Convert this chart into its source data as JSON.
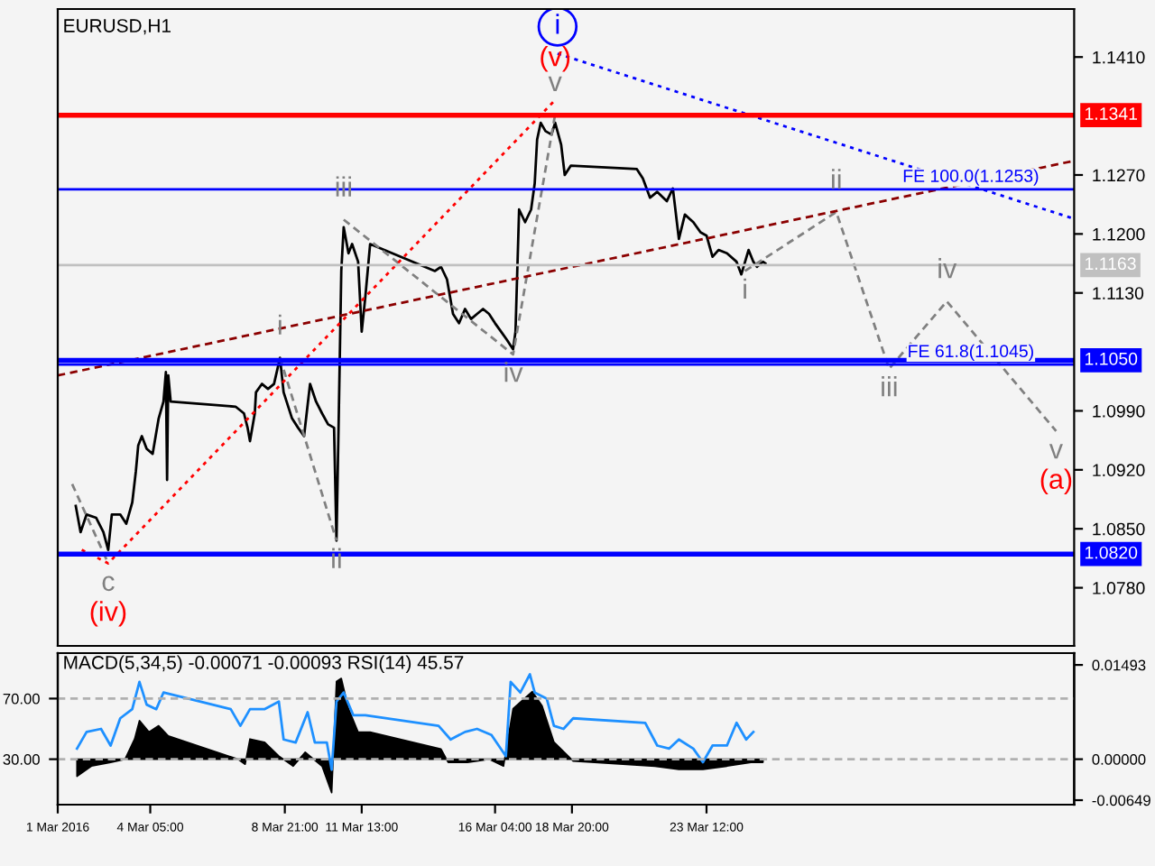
{
  "chart_data": [
    {
      "type": "line",
      "title": "EURUSD,H1",
      "xlim": [
        "2016-03-01T00:00",
        "2016-04-05T06:00"
      ],
      "ylim": [
        1.0711,
        1.1467
      ],
      "tick_labels": "y",
      "grid": false,
      "yticks": [
        {
          "value": 1.078,
          "label": "1.0780"
        },
        {
          "value": 1.085,
          "label": "1.0850"
        },
        {
          "value": 1.092,
          "label": "1.0920"
        },
        {
          "value": 1.099,
          "label": "1.0990"
        },
        {
          "value": 1.113,
          "label": "1.1130"
        },
        {
          "value": 1.12,
          "label": "1.1200"
        },
        {
          "value": 1.127,
          "label": "1.1270"
        },
        {
          "value": 1.141,
          "label": "1.1410"
        }
      ],
      "series": [
        {
          "color": "#000000",
          "line_style": "solid",
          "x": [
            "2016-03-01T15:00",
            "2016-03-01T19:00",
            "2016-03-02T00:00",
            "2016-03-02T08:00",
            "2016-03-02T14:00",
            "2016-03-02T18:00",
            "2016-03-02T21:00",
            "2016-03-03T04:00",
            "2016-03-03T09:00",
            "2016-03-03T14:00",
            "2016-03-03T17:00",
            "2016-03-03T19:00",
            "2016-03-03T22:00",
            "2016-03-04T02:00",
            "2016-03-04T07:00",
            "2016-03-04T12:00",
            "2016-03-04T16:00",
            "2016-03-04T18:00",
            "2016-03-04T19:00",
            "2016-03-04T20:00",
            "2016-03-04T22:00",
            "2016-03-07T04:00",
            "2016-03-07T11:00",
            "2016-03-07T14:00",
            "2016-03-07T16:00",
            "2016-03-07T20:00",
            "2016-03-07T21:00",
            "2016-03-08T02:00",
            "2016-03-08T07:00",
            "2016-03-08T12:00",
            "2016-03-08T17:00",
            "2016-03-08T20:00",
            "2016-03-09T03:00",
            "2016-03-09T08:00",
            "2016-03-09T13:00",
            "2016-03-09T18:00",
            "2016-03-09T23:00",
            "2016-03-10T04:00",
            "2016-03-10T09:00",
            "2016-03-10T14:00",
            "2016-03-10T16:00",
            "2016-03-10T18:00",
            "2016-03-10T20:00",
            "2016-03-10T22:00",
            "2016-03-11T02:00",
            "2016-03-11T05:00",
            "2016-03-11T10:00",
            "2016-03-11T13:00",
            "2016-03-11T16:00",
            "2016-03-11T20:00",
            "2016-03-14T02:00",
            "2016-03-14T07:00",
            "2016-03-14T12:00",
            "2016-03-14T17:00",
            "2016-03-14T22:00",
            "2016-03-15T03:00",
            "2016-03-15T08:00",
            "2016-03-15T13:00",
            "2016-03-15T18:00",
            "2016-03-15T23:00",
            "2016-03-16T04:00",
            "2016-03-16T09:00",
            "2016-03-16T14:00",
            "2016-03-16T19:00",
            "2016-03-16T21:00",
            "2016-03-17T00:00",
            "2016-03-17T05:00",
            "2016-03-17T10:00",
            "2016-03-17T13:00",
            "2016-03-17T15:00",
            "2016-03-17T18:00",
            "2016-03-17T22:00",
            "2016-03-18T03:00",
            "2016-03-18T06:00",
            "2016-03-18T11:00",
            "2016-03-18T14:00",
            "2016-03-18T19:00",
            "2016-03-21T02:00",
            "2016-03-21T07:00",
            "2016-03-21T13:00",
            "2016-03-21T19:00",
            "2016-03-22T03:00",
            "2016-03-22T08:00",
            "2016-03-22T13:00",
            "2016-03-22T18:00",
            "2016-03-23T01:00",
            "2016-03-23T07:00",
            "2016-03-23T12:00",
            "2016-03-23T17:00",
            "2016-03-23T22:00",
            "2016-03-24T05:00",
            "2016-03-24T13:00",
            "2016-03-24T17:00",
            "2016-03-24T23:00",
            "2016-03-25T03:00",
            "2016-03-25T06:00",
            "2016-03-25T11:00",
            "2016-03-25T13:00"
          ],
          "values": [
            1.0877,
            1.0846,
            1.0867,
            1.0863,
            1.0846,
            1.0825,
            1.0867,
            1.0867,
            1.0856,
            1.0881,
            1.0918,
            1.0949,
            1.096,
            1.0945,
            1.0939,
            1.0981,
            1.1001,
            1.1036,
            1.0908,
            1.1032,
            1.1001,
            1.0995,
            1.0987,
            1.097,
            1.0954,
            1.0987,
            1.1012,
            1.1022,
            1.1016,
            1.1022,
            1.1053,
            1.1012,
            1.0981,
            1.097,
            1.096,
            1.1022,
            1.1001,
            1.0987,
            1.0974,
            1.097,
            1.0836,
            1.0991,
            1.1156,
            1.1208,
            1.1177,
            1.1188,
            1.1167,
            1.1084,
            1.1125,
            1.1188,
            1.1156,
            1.1161,
            1.1146,
            1.1105,
            1.1094,
            1.1111,
            1.1099,
            1.1105,
            1.1111,
            1.1105,
            1.1094,
            1.1084,
            1.1074,
            1.1063,
            1.1084,
            1.1229,
            1.1214,
            1.1229,
            1.126,
            1.1312,
            1.1332,
            1.1322,
            1.1318,
            1.1332,
            1.1306,
            1.127,
            1.1281,
            1.1277,
            1.1266,
            1.1243,
            1.125,
            1.1239,
            1.1254,
            1.1194,
            1.1223,
            1.1214,
            1.1202,
            1.1198,
            1.1173,
            1.1181,
            1.1177,
            1.1167,
            1.1152,
            1.1181,
            1.1167,
            1.1161,
            1.1167,
            1.1165
          ]
        },
        {
          "color": "#808080",
          "line_style": "dashed",
          "x": [
            "2016-03-01T12:00",
            "2016-03-02T18:00"
          ],
          "values": [
            1.0903,
            1.0809
          ],
          "value_labels": [
            null,
            "c"
          ]
        },
        {
          "color": "#808080",
          "line_style": "dashed",
          "x": [
            "2016-03-08T17:00",
            "2016-03-10T16:00"
          ],
          "values": [
            1.1053,
            1.0836
          ],
          "value_labels": [
            "i",
            "ii"
          ]
        },
        {
          "color": "#808080",
          "line_style": "dashed",
          "x": [
            "2016-03-10T22:00",
            "2016-03-16T19:00",
            "2016-03-18T06:00"
          ],
          "values": [
            1.1217,
            1.1057,
            1.1342
          ],
          "value_labels": [
            "iii",
            "iv",
            "v"
          ]
        },
        {
          "color": "#808080",
          "line_style": "dashed",
          "x": [
            "2016-03-24T20:00",
            "2016-03-28T00:00",
            "2016-03-29T20:00",
            "2016-03-31T20:00",
            "2016-04-04T15:00"
          ],
          "values": [
            1.1156,
            1.1226,
            1.104,
            1.112,
            1.0966
          ],
          "value_labels": [
            "i",
            "ii",
            "iii",
            "iv",
            "v"
          ]
        },
        {
          "color": "#ff0000",
          "line_style": "dotted",
          "x": [
            "2016-03-01T20:00",
            "2016-03-02T18:00",
            "2016-03-18T06:00"
          ],
          "values": [
            1.0825,
            1.0809,
            1.1359
          ]
        },
        {
          "color": "#0000ff",
          "line_style": "dotted",
          "x": [
            "2016-03-18T08:00",
            "2016-04-05T06:00"
          ],
          "values": [
            1.1414,
            1.1218
          ]
        },
        {
          "color": "#8b0000",
          "line_style": "dashed",
          "x": [
            "2016-03-01T00:00",
            "2016-04-05T03:00"
          ],
          "values": [
            1.1032,
            1.1286
          ]
        },
        {
          "type": "scatter",
          "marker": "circle",
          "color": "#0000ff",
          "x": [
            "2016-03-18T08:00"
          ],
          "values": [
            1.1446
          ],
          "value_labels": [
            "i"
          ]
        }
      ],
      "ref_lines": [
        {
          "axis": "y",
          "value": 1.1341,
          "label": "1.1341",
          "color": "#ff0000"
        },
        {
          "axis": "y",
          "value": 1.1253,
          "color": "#0000ff"
        },
        {
          "axis": "y",
          "value": 1.1163,
          "label": "1.1163",
          "color": "#c0c0c0"
        },
        {
          "axis": "y",
          "value": 1.105,
          "label": "1.1050",
          "color": "#0000ff"
        },
        {
          "axis": "y",
          "value": 1.1045,
          "color": "#0000ff"
        },
        {
          "axis": "y",
          "value": 1.082,
          "label": "1.0820",
          "color": "#0000ff"
        }
      ],
      "annotations": [
        {
          "text": "FE 100.0(1.1253)",
          "x": "2016-04-01T16:00",
          "y": 1.1253
        },
        {
          "text": "FE 61.8(1.1045)",
          "x": "2016-04-01T16:00",
          "y": 1.1045
        },
        {
          "text": "(v)",
          "x": "2016-03-18T06:00",
          "y": 1.1342
        },
        {
          "text": "(iv)",
          "x": "2016-03-02T18:00",
          "y": 1.0809
        },
        {
          "text": "(a)",
          "x": "2016-04-04T15:00",
          "y": 1.0966
        }
      ]
    },
    {
      "type": "area",
      "title": "MACD(5,34,5) -0.00071 -0.00093 RSI(14) 45.57",
      "xlim": [
        "2016-03-01T00:00",
        "2016-04-05T06:00"
      ],
      "ylim": [
        0,
        100
      ],
      "y2lim": [
        -0.0072,
        0.0168
      ],
      "grid": false,
      "xticks": [
        {
          "value": "2016-03-01T00:00",
          "label": "1 Mar 2016"
        },
        {
          "value": "2016-03-04T05:00",
          "label": "4 Mar 05:00"
        },
        {
          "value": "2016-03-08T21:00",
          "label": "8 Mar 21:00"
        },
        {
          "value": "2016-03-11T13:00",
          "label": "11 Mar 13:00"
        },
        {
          "value": "2016-03-16T04:00",
          "label": "16 Mar 04:00"
        },
        {
          "value": "2016-03-18T20:00",
          "label": "18 Mar 20:00"
        },
        {
          "value": "2016-03-23T12:00",
          "label": "23 Mar 12:00"
        }
      ],
      "y2ticks": [
        {
          "value": -0.00649,
          "label": "-0.00649"
        },
        {
          "value": 0,
          "label": "0.00000"
        },
        {
          "value": 0.01493,
          "label": "0.01493"
        }
      ],
      "yticks": [
        {
          "value": 30,
          "label": "30.00"
        },
        {
          "value": 70,
          "label": "70.00"
        }
      ],
      "series": [
        {
          "color": "#000000",
          "axis": "y2",
          "x": [
            "2016-03-01T16:00",
            "2016-03-02T04:00",
            "2016-03-02T20:00",
            "2016-03-03T08:00",
            "2016-03-03T16:00",
            "2016-03-03T20:00",
            "2016-03-04T04:00",
            "2016-03-04T12:00",
            "2016-03-04T20:00",
            "2016-03-07T06:00",
            "2016-03-07T12:00",
            "2016-03-07T16:00",
            "2016-03-08T04:00",
            "2016-03-08T16:00",
            "2016-03-09T04:00",
            "2016-03-09T14:00",
            "2016-03-10T04:00",
            "2016-03-10T12:00",
            "2016-03-10T16:00",
            "2016-03-10T20:00",
            "2016-03-11T02:00",
            "2016-03-11T10:00",
            "2016-03-11T20:00",
            "2016-03-14T07:00",
            "2016-03-14T13:00",
            "2016-03-15T05:00",
            "2016-03-15T23:00",
            "2016-03-16T11:00",
            "2016-03-16T19:00",
            "2016-03-17T11:00",
            "2016-03-17T19:00",
            "2016-03-18T05:00",
            "2016-03-18T21:00",
            "2016-03-21T17:00",
            "2016-03-22T13:00",
            "2016-03-23T09:00",
            "2016-03-24T05:00",
            "2016-03-25T01:00",
            "2016-03-25T11:00"
          ],
          "values": [
            -0.0027,
            -0.0011,
            -0.0005,
            0,
            0.0032,
            0.0061,
            0.0043,
            0.0053,
            0.0037,
            0,
            -0.0008,
            0.0032,
            0.0027,
            0.0005,
            -0.0011,
            0.0011,
            -0.0011,
            -0.0053,
            0.0123,
            0.0128,
            0.008,
            0.0043,
            0.0043,
            0.0016,
            -0.0005,
            -0.0005,
            0,
            -0.0011,
            0.008,
            0.0107,
            0.0085,
            0.0027,
            -0.0003,
            -0.0011,
            -0.0016,
            -0.0016,
            -0.0011,
            -0.0005,
            -0.0005
          ]
        },
        {
          "type": "line",
          "color": "#1e90ff",
          "axis": "y",
          "line_style": "solid",
          "x": [
            "2016-03-01T16:00",
            "2016-03-02T00:00",
            "2016-03-02T12:00",
            "2016-03-02T20:00",
            "2016-03-03T04:00",
            "2016-03-03T14:00",
            "2016-03-03T20:00",
            "2016-03-04T02:00",
            "2016-03-04T10:00",
            "2016-03-04T16:00",
            "2016-03-07T00:00",
            "2016-03-07T08:00",
            "2016-03-07T16:00",
            "2016-03-08T04:00",
            "2016-03-08T16:00",
            "2016-03-08T20:00",
            "2016-03-09T06:00",
            "2016-03-09T16:00",
            "2016-03-09T22:00",
            "2016-03-10T08:00",
            "2016-03-10T12:00",
            "2016-03-10T16:00",
            "2016-03-10T22:00",
            "2016-03-11T06:00",
            "2016-03-11T16:00",
            "2016-03-14T05:00",
            "2016-03-14T15:00",
            "2016-03-15T03:00",
            "2016-03-15T13:00",
            "2016-03-16T01:00",
            "2016-03-16T13:00",
            "2016-03-16T17:00",
            "2016-03-17T01:00",
            "2016-03-17T09:00",
            "2016-03-17T13:00",
            "2016-03-17T23:00",
            "2016-03-18T05:00",
            "2016-03-18T13:00",
            "2016-03-18T21:00",
            "2016-03-21T09:00",
            "2016-03-21T19:00",
            "2016-03-22T05:00",
            "2016-03-22T13:00",
            "2016-03-23T01:00",
            "2016-03-23T09:00",
            "2016-03-23T17:00",
            "2016-03-24T05:00",
            "2016-03-24T13:00",
            "2016-03-24T21:00",
            "2016-03-25T03:00"
          ],
          "values": [
            37,
            48,
            50,
            39,
            57,
            63,
            81,
            66,
            63,
            74,
            63,
            52,
            63,
            63,
            68,
            43,
            41,
            61,
            41,
            41,
            23,
            68,
            74,
            59,
            59,
            52,
            43,
            48,
            50,
            46,
            32,
            81,
            74,
            86,
            74,
            70,
            52,
            50,
            57,
            54,
            39,
            37,
            43,
            37,
            28,
            39,
            39,
            54,
            43,
            48
          ]
        }
      ],
      "ref_lines": [
        {
          "axis": "y",
          "value": 70,
          "color": "#b0b0b0",
          "line_style": "dashed"
        },
        {
          "axis": "y",
          "value": 30,
          "color": "#b0b0b0",
          "line_style": "dashed"
        }
      ]
    }
  ]
}
